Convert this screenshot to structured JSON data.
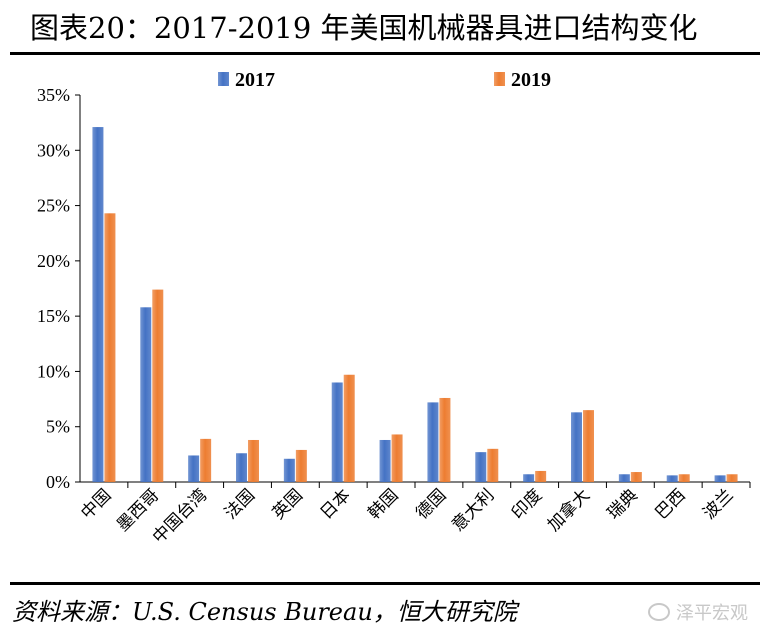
{
  "title": "图表20：2017-2019 年美国机械器具进口结构变化",
  "source": "资料来源：U.S. Census Bureau，恒大研究院",
  "watermark": "泽平宏观",
  "chart_data": {
    "type": "bar",
    "categories": [
      "中国",
      "墨西哥",
      "中国台湾",
      "法国",
      "英国",
      "日本",
      "韩国",
      "德国",
      "意大利",
      "印度",
      "加拿大",
      "瑞典",
      "巴西",
      "波兰"
    ],
    "series": [
      {
        "name": "2017",
        "color": "#4472C4",
        "values": [
          32.1,
          15.8,
          2.4,
          2.6,
          2.1,
          9.0,
          3.8,
          7.2,
          2.7,
          0.7,
          6.3,
          0.7,
          0.6,
          0.6
        ]
      },
      {
        "name": "2019",
        "color": "#ED7D31",
        "values": [
          24.3,
          17.4,
          3.9,
          3.8,
          2.9,
          9.7,
          4.3,
          7.6,
          3.0,
          1.0,
          6.5,
          0.9,
          0.7,
          0.7
        ]
      }
    ],
    "yticks": [
      "0%",
      "5%",
      "10%",
      "15%",
      "20%",
      "25%",
      "30%",
      "35%"
    ],
    "ylim": [
      0,
      35
    ],
    "legend": "top"
  }
}
